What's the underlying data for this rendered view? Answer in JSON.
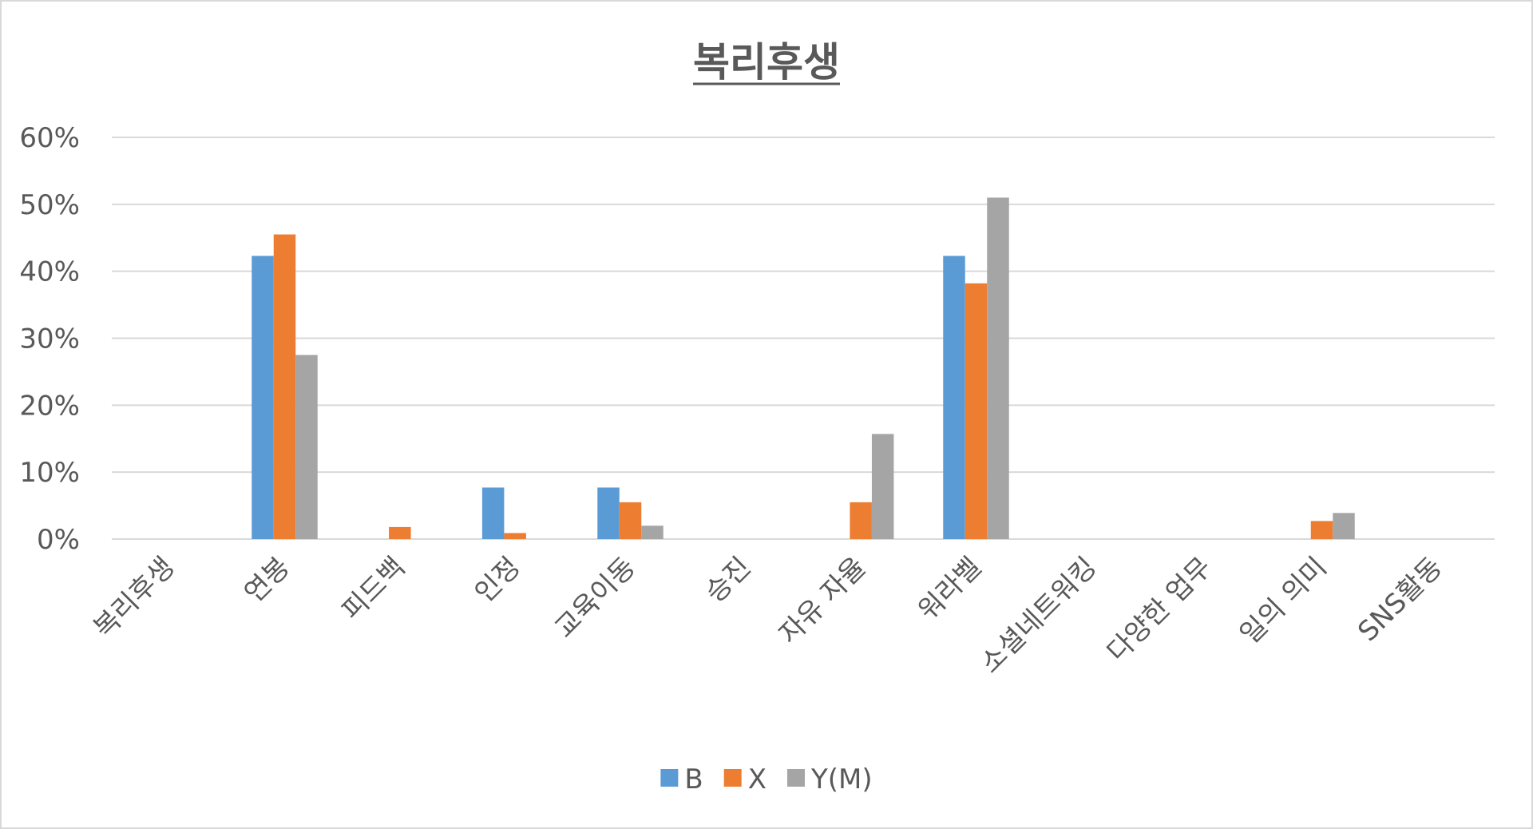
{
  "chart_data": {
    "type": "bar",
    "title": "복리후생",
    "categories": [
      "복리후생",
      "연봉",
      "피드백",
      "인정",
      "교육이동",
      "승진",
      "자유 자율",
      "워라벨",
      "소셜네트워킹",
      "다양한 업무",
      "일의 의미",
      "SNS활동"
    ],
    "series": [
      {
        "name": "B",
        "color": "#5b9bd5",
        "values": [
          0,
          42.3,
          0,
          7.7,
          7.7,
          0,
          0,
          42.3,
          0,
          0,
          0,
          0
        ]
      },
      {
        "name": "X",
        "color": "#ed7d31",
        "values": [
          0,
          45.5,
          1.8,
          0.9,
          5.5,
          0,
          5.5,
          38.2,
          0,
          0,
          2.7,
          0
        ]
      },
      {
        "name": "Y(M)",
        "color": "#a5a5a5",
        "values": [
          0,
          27.5,
          0,
          0,
          2.0,
          0,
          15.7,
          51.0,
          0,
          0,
          3.9,
          0
        ]
      }
    ],
    "ylim": [
      0,
      60
    ],
    "yticks": [
      "0%",
      "10%",
      "20%",
      "30%",
      "40%",
      "50%",
      "60%"
    ],
    "xlabel": "",
    "ylabel": "",
    "grid": true,
    "legend": "bottom",
    "gridline_color": "#d9d9d9",
    "text_color": "#595959"
  }
}
